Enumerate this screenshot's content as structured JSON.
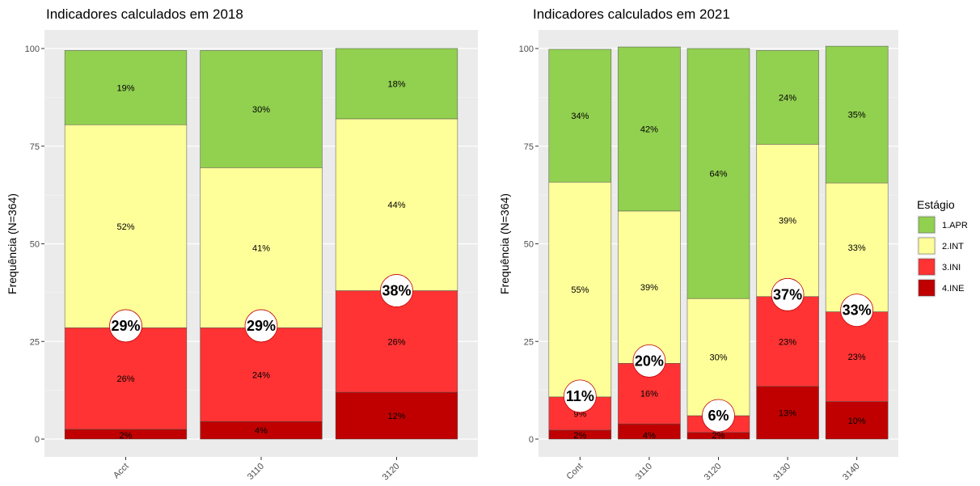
{
  "legend": {
    "title": "Estágio",
    "items": [
      {
        "label": "1.APR",
        "color": "#92d050"
      },
      {
        "label": "2.INT",
        "color": "#ffff99"
      },
      {
        "label": "3.INI",
        "color": "#ff3333"
      },
      {
        "label": "4.INE",
        "color": "#c00000"
      }
    ]
  },
  "chart_data": [
    {
      "type": "bar",
      "stacked": true,
      "title": "Indicadores calculados em 2018",
      "ylabel": "Frequência (N=364)",
      "xlabel": "",
      "ylim": [
        0,
        100
      ],
      "yticks": [
        0,
        25,
        50,
        75,
        100
      ],
      "grid": true,
      "categories": [
        "Acct",
        "3110",
        "3120"
      ],
      "series": [
        {
          "name": "1.APR",
          "values": [
            19,
            30,
            18
          ],
          "labels": [
            "19%",
            "30%",
            "18%"
          ]
        },
        {
          "name": "2.INT",
          "values": [
            52,
            41,
            44
          ],
          "labels": [
            "52%",
            "41%",
            "44%"
          ]
        },
        {
          "name": "3.INI",
          "values": [
            26,
            24,
            26
          ],
          "labels": [
            "26%",
            "24%",
            "26%"
          ]
        },
        {
          "name": "4.INE",
          "values": [
            2.5,
            4.5,
            12
          ],
          "labels": [
            "2%",
            "4%",
            "12%"
          ]
        }
      ],
      "highlight": {
        "values": [
          29,
          29,
          38
        ],
        "labels": [
          "29%",
          "29%",
          "38%"
        ]
      }
    },
    {
      "type": "bar",
      "stacked": true,
      "title": "Indicadores calculados em 2021",
      "ylabel": "Frequência (N=364)",
      "xlabel": "",
      "ylim": [
        0,
        100
      ],
      "yticks": [
        0,
        25,
        50,
        75,
        100
      ],
      "grid": true,
      "categories": [
        "Cont",
        "3110",
        "3120",
        "3130",
        "3140"
      ],
      "series": [
        {
          "name": "1.APR",
          "values": [
            34,
            42,
            64,
            24,
            35
          ],
          "labels": [
            "34%",
            "42%",
            "64%",
            "24%",
            "35%"
          ]
        },
        {
          "name": "2.INT",
          "values": [
            55,
            39,
            30,
            39,
            33
          ],
          "labels": [
            "55%",
            "39%",
            "30%",
            "39%",
            "33%"
          ]
        },
        {
          "name": "3.INI",
          "values": [
            8.5,
            15.5,
            4.3,
            23,
            23
          ],
          "labels": [
            "9%",
            "16%",
            "",
            "23%",
            "23%"
          ]
        },
        {
          "name": "4.INE",
          "values": [
            2.3,
            3.9,
            1.7,
            13.5,
            9.6
          ],
          "labels": [
            "2%",
            "4%",
            "2%",
            "13%",
            "10%"
          ]
        }
      ],
      "highlight": {
        "values": [
          11,
          20,
          6,
          37,
          33
        ],
        "labels": [
          "11%",
          "20%",
          "6%",
          "37%",
          "33%"
        ]
      }
    }
  ]
}
